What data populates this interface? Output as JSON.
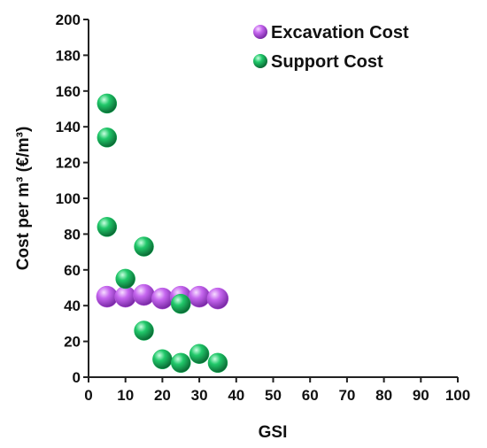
{
  "chart_data": {
    "type": "scatter",
    "title": "",
    "xlabel": "GSI",
    "ylabel": "Cost per m³ (€/m³)",
    "xlim": [
      0,
      100
    ],
    "ylim": [
      0,
      200
    ],
    "xticks": [
      0,
      10,
      20,
      30,
      40,
      50,
      60,
      70,
      80,
      90,
      100
    ],
    "yticks": [
      0,
      20,
      40,
      60,
      80,
      100,
      120,
      140,
      160,
      180,
      200
    ],
    "grid": false,
    "legend_position": "top-right",
    "series": [
      {
        "name": "Excavation Cost",
        "color": "#c060e8",
        "points": [
          {
            "x": 5,
            "y": 45
          },
          {
            "x": 10,
            "y": 45
          },
          {
            "x": 15,
            "y": 46
          },
          {
            "x": 20,
            "y": 44
          },
          {
            "x": 25,
            "y": 45
          },
          {
            "x": 30,
            "y": 45
          },
          {
            "x": 35,
            "y": 44
          }
        ]
      },
      {
        "name": "Support Cost",
        "color": "#18c060",
        "points": [
          {
            "x": 5,
            "y": 153
          },
          {
            "x": 5,
            "y": 134
          },
          {
            "x": 5,
            "y": 84
          },
          {
            "x": 10,
            "y": 55
          },
          {
            "x": 15,
            "y": 73
          },
          {
            "x": 15,
            "y": 26
          },
          {
            "x": 20,
            "y": 10
          },
          {
            "x": 25,
            "y": 8
          },
          {
            "x": 25,
            "y": 41
          },
          {
            "x": 30,
            "y": 13
          },
          {
            "x": 35,
            "y": 8
          }
        ]
      }
    ]
  }
}
